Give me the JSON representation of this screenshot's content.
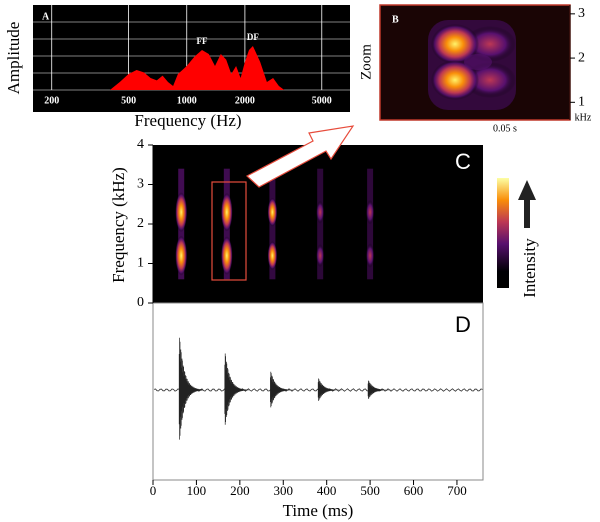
{
  "chart_data": [
    {
      "type": "area",
      "label": "A",
      "xlabel": "Frequency (Hz)",
      "ylabel": "Amplitude",
      "log_x": true,
      "xlim": [
        160,
        7000
      ],
      "xticks": [
        200,
        500,
        1000,
        2000,
        5000
      ],
      "ylim": [
        0,
        1
      ],
      "color": "#ff0000",
      "grid": true,
      "x": [
        400,
        450,
        500,
        550,
        600,
        650,
        700,
        750,
        800,
        850,
        900,
        950,
        1000,
        1100,
        1200,
        1300,
        1400,
        1500,
        1600,
        1700,
        1800,
        1900,
        2000,
        2100,
        2200,
        2400,
        2600,
        2800,
        3000,
        3200
      ],
      "values": [
        0,
        0.1,
        0.2,
        0.25,
        0.22,
        0.15,
        0.12,
        0.18,
        0.1,
        0.05,
        0.2,
        0.25,
        0.3,
        0.42,
        0.5,
        0.45,
        0.3,
        0.45,
        0.38,
        0.2,
        0.3,
        0.15,
        0.35,
        0.5,
        0.55,
        0.35,
        0.1,
        0.15,
        0.05,
        0
      ],
      "annotations": [
        {
          "text": "FF",
          "x": 1200
        },
        {
          "text": "DF",
          "x": 2200
        }
      ]
    },
    {
      "type": "zoom",
      "label": "B",
      "ylabel": "Zoom",
      "y_unit": "kHz",
      "ylim": [
        0.6,
        3.2
      ],
      "yticks": [
        1,
        2,
        3
      ],
      "scale_label": "0.05 s"
    },
    {
      "type": "spectrogram",
      "label": "C",
      "ylabel": "Frequency (kHz)",
      "colorbar_label": "Intensity",
      "x": [
        65,
        170,
        275,
        385,
        500
      ],
      "values": [
        1,
        0.95,
        0.6,
        0.4,
        0.45
      ],
      "bands": [
        1.2,
        2.3
      ],
      "xlim": [
        0,
        760
      ],
      "ylim": [
        0,
        4
      ],
      "yticks": [
        0,
        1,
        2,
        3,
        4
      ]
    },
    {
      "type": "waveform",
      "label": "D",
      "xlabel": "Time (ms)",
      "x": [
        65,
        170,
        275,
        385,
        500
      ],
      "values": [
        1,
        0.7,
        0.35,
        0.22,
        0.18
      ],
      "xlim": [
        0,
        760
      ],
      "xticks": [
        0,
        100,
        200,
        300,
        400,
        500,
        600,
        700
      ]
    }
  ]
}
